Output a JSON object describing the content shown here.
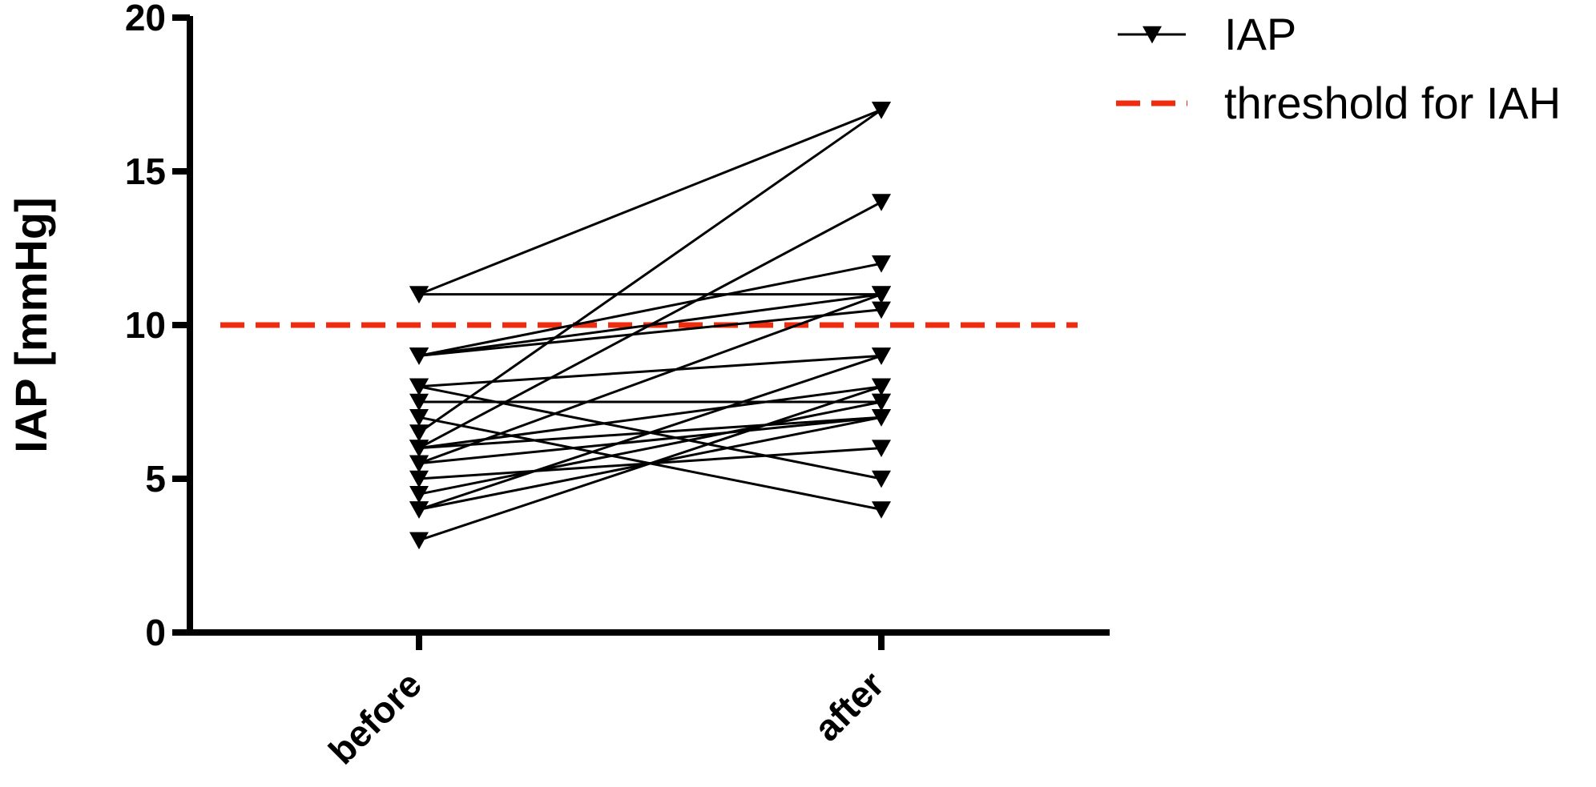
{
  "chart_data": {
    "type": "line",
    "title": "",
    "xlabel": "",
    "ylabel": "IAP [mmHg]",
    "categories": [
      "before",
      "after"
    ],
    "ylim": [
      0,
      20
    ],
    "yticks": [
      "0",
      "5",
      "10",
      "15",
      "20"
    ],
    "grid": false,
    "legend_position": "top-right",
    "legend": [
      {
        "label": "IAP",
        "style": "black line with downward-triangle markers"
      },
      {
        "label": "threshold for IAH",
        "style": "red dashed line"
      }
    ],
    "threshold": {
      "label": "threshold for IAH",
      "y": 10,
      "color": "#ee2c10"
    },
    "line_color": "#000000",
    "pairs": [
      [
        11,
        17
      ],
      [
        11,
        11
      ],
      [
        9,
        11
      ],
      [
        9,
        10.5
      ],
      [
        9,
        12
      ],
      [
        8,
        9
      ],
      [
        8,
        5
      ],
      [
        7.5,
        7.5
      ],
      [
        7,
        4
      ],
      [
        6.5,
        17
      ],
      [
        6,
        14
      ],
      [
        6,
        8
      ],
      [
        6,
        7
      ],
      [
        5.5,
        11
      ],
      [
        5.5,
        7
      ],
      [
        5,
        6
      ],
      [
        4.5,
        7.5
      ],
      [
        4,
        9
      ],
      [
        4,
        7
      ],
      [
        3,
        8
      ]
    ]
  }
}
